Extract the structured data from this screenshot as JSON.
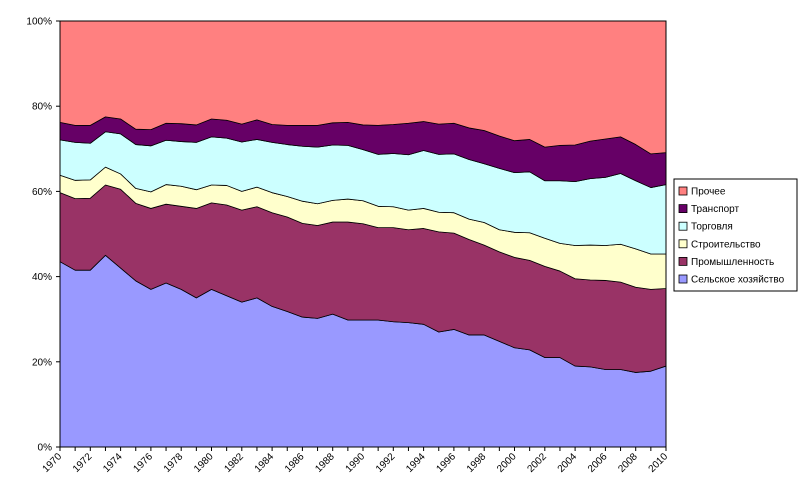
{
  "chart_data": {
    "type": "area",
    "stacking": "percent",
    "title": "",
    "xlabel": "",
    "ylabel": "",
    "ylim": [
      0,
      100
    ],
    "y_ticks": [
      "0%",
      "20%",
      "40%",
      "60%",
      "80%",
      "100%"
    ],
    "x_ticks": [
      "1970",
      "1972",
      "1974",
      "1976",
      "1978",
      "1980",
      "1982",
      "1984",
      "1986",
      "1988",
      "1990",
      "1992",
      "1994",
      "1996",
      "1998",
      "2000",
      "2002",
      "2004",
      "2006",
      "2008",
      "2010"
    ],
    "x": [
      1970,
      1971,
      1972,
      1973,
      1974,
      1975,
      1976,
      1977,
      1978,
      1979,
      1980,
      1981,
      1982,
      1983,
      1984,
      1985,
      1986,
      1987,
      1988,
      1989,
      1990,
      1991,
      1992,
      1993,
      1994,
      1995,
      1996,
      1997,
      1998,
      1999,
      2000,
      2001,
      2002,
      2003,
      2004,
      2005,
      2006,
      2007,
      2008,
      2009,
      2010
    ],
    "grid": false,
    "legend_position": "right",
    "series": [
      {
        "name": "Сельское хозяйство",
        "color": "#9999ff",
        "values": [
          43.5,
          41.5,
          41.5,
          45,
          42,
          39,
          37,
          38.5,
          37,
          35,
          37,
          35.5,
          34,
          35,
          33,
          31.8,
          30.5,
          30.2,
          31.2,
          29.8,
          29.8,
          29.8,
          29.4,
          29.2,
          28.8,
          27,
          27.6,
          26.3,
          26.3,
          24.8,
          23.3,
          22.8,
          21,
          21,
          19,
          18.8,
          18.2,
          18.2,
          17.5,
          17.8,
          19
        ]
      },
      {
        "name": "Промышленность",
        "color": "#993366",
        "values": [
          16.2,
          16.8,
          16.9,
          16.5,
          18.5,
          18.2,
          19,
          18.5,
          19.5,
          21,
          20.3,
          21.3,
          21.6,
          21.4,
          22,
          22.2,
          22,
          21.8,
          21.6,
          23,
          22.6,
          21.7,
          22.1,
          21.8,
          22.5,
          23.5,
          22.6,
          22.4,
          21.1,
          21,
          21.2,
          21,
          21.4,
          20.3,
          20.5,
          20.4,
          20.9,
          20.5,
          20,
          19.2,
          18.2
        ]
      },
      {
        "name": "Строительство",
        "color": "#ffffcc",
        "values": [
          4.1,
          4.3,
          4.3,
          4.2,
          3.6,
          3.5,
          3.9,
          4.6,
          4.7,
          4.4,
          4.2,
          4.6,
          4.4,
          4.6,
          4.7,
          4.8,
          5.2,
          5.1,
          5.1,
          5.4,
          5.4,
          5,
          4.9,
          4.6,
          4.7,
          4.6,
          4.8,
          4.8,
          5.3,
          5.2,
          5.9,
          6.5,
          6.6,
          6.5,
          7.8,
          8.2,
          8.2,
          8.9,
          9,
          8.3,
          8.1
        ]
      },
      {
        "name": "Торговля",
        "color": "#ccffff",
        "values": [
          8.3,
          8.9,
          8.6,
          8.3,
          9.4,
          10.3,
          10.8,
          10.4,
          10.5,
          11.1,
          11.3,
          11.1,
          11.6,
          11.2,
          11.8,
          12.2,
          12.9,
          13.3,
          13,
          12.6,
          12,
          12.2,
          12.5,
          13,
          13.6,
          13.6,
          13.8,
          14,
          13.8,
          14.4,
          14,
          14.3,
          13.5,
          14.7,
          15,
          15.6,
          16,
          16.6,
          16,
          15.6,
          16.3
        ]
      },
      {
        "name": "Транспорт",
        "color": "#660066",
        "values": [
          4.1,
          4,
          4.2,
          3.5,
          3.5,
          3.6,
          3.8,
          4,
          4.2,
          4.1,
          4.2,
          4.2,
          4.2,
          4.6,
          4.2,
          4.5,
          4.9,
          5.1,
          5.2,
          5.4,
          5.8,
          6.8,
          6.8,
          7.4,
          6.8,
          7.1,
          7.2,
          7.4,
          7.8,
          7.6,
          7.5,
          7.6,
          7.9,
          8.3,
          8.6,
          8.8,
          9,
          8.6,
          8.5,
          7.9,
          7.5
        ]
      },
      {
        "name": "Прочее",
        "color": "#ff8080",
        "values": [
          23.8,
          24.5,
          24.5,
          22.5,
          23,
          25.4,
          25.5,
          24,
          24.1,
          24.4,
          23,
          23.3,
          24.2,
          23.2,
          24.3,
          24.5,
          24.5,
          24.5,
          23.9,
          23.8,
          24.4,
          24.5,
          24.3,
          24,
          23.6,
          24.2,
          24,
          25.1,
          25.7,
          27,
          28.1,
          27.8,
          29.6,
          29.2,
          29.1,
          28.2,
          27.7,
          27.2,
          29,
          31.2,
          30.9
        ]
      }
    ]
  }
}
